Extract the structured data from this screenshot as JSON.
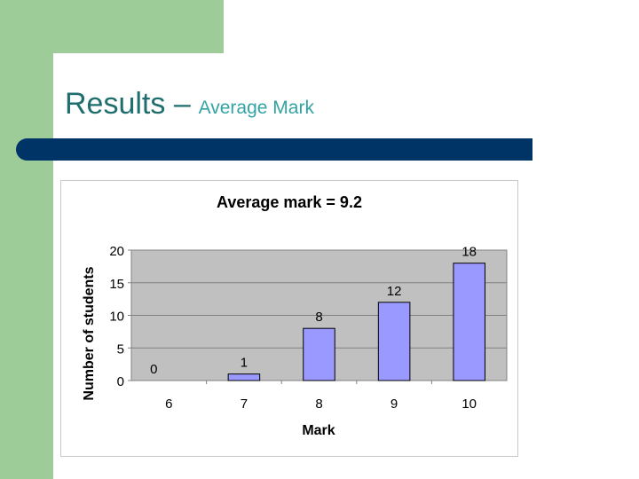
{
  "slide": {
    "title_main": "Results –",
    "title_sub": "Average Mark"
  },
  "colors": {
    "background": "#ffffff",
    "sidebar_green": "#9dcc98",
    "title_bar": "#003366",
    "plot_area": "#c0c0c0",
    "bar_fill": "#9999ff",
    "bar_stroke": "#000000"
  },
  "chart_data": {
    "type": "bar",
    "title": "Average mark = 9.2",
    "xlabel": "Mark",
    "ylabel": "Number of students",
    "categories": [
      "6",
      "7",
      "8",
      "9",
      "10"
    ],
    "values": [
      0,
      1,
      8,
      12,
      18
    ],
    "ylim": [
      0,
      20
    ],
    "yticks": [
      0,
      5,
      10,
      15,
      20
    ],
    "grid": true,
    "legend": "none",
    "data_labels": true
  }
}
